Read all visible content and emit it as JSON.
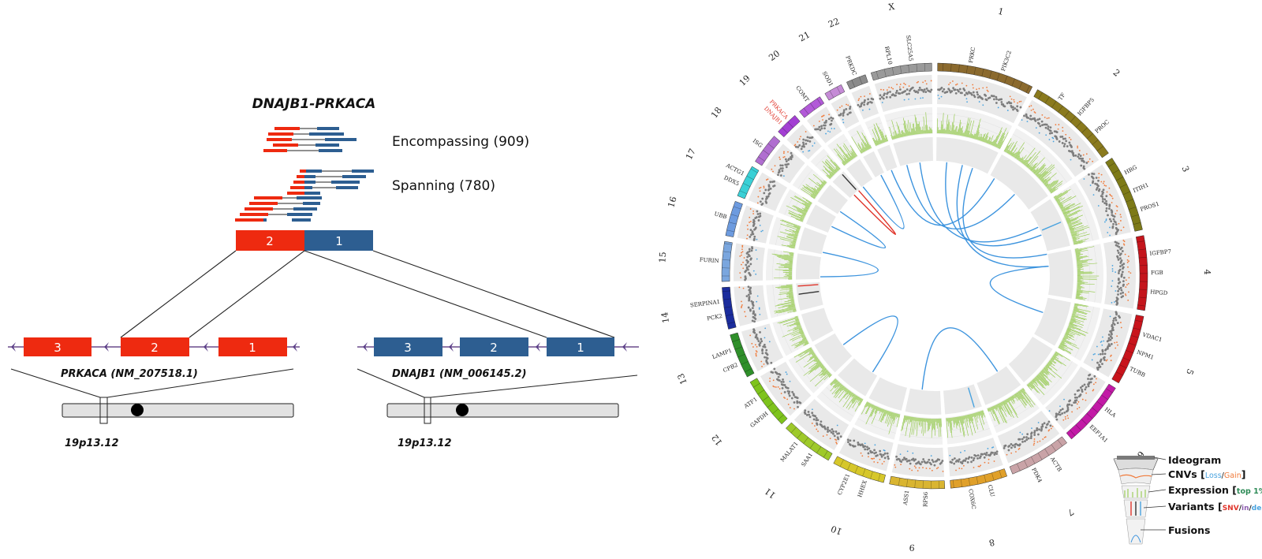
{
  "left_panel": {
    "fusion_title": "DNAJB1-PRKACA",
    "encompassing_label": "Encompassing (909)",
    "spanning_label": "Spanning (780)",
    "fusion_exons": [
      {
        "label": "2",
        "color": "#ee2a10"
      },
      {
        "label": "1",
        "color": "#2d5e91"
      }
    ],
    "prkaca": {
      "gene_label": "PRKACA (NM_207518.1)",
      "exons": [
        "3",
        "2",
        "1"
      ],
      "color": "#ee2a10",
      "band": "19p13.12"
    },
    "dnajb1": {
      "gene_label": "DNAJB1 (NM_006145.2)",
      "exons": [
        "3",
        "2",
        "1"
      ],
      "color": "#2d5e91",
      "band": "19p13.12"
    }
  },
  "circos": {
    "chromosomes": [
      "1",
      "2",
      "3",
      "4",
      "5",
      "6",
      "7",
      "8",
      "9",
      "10",
      "11",
      "12",
      "13",
      "14",
      "15",
      "16",
      "17",
      "18",
      "19",
      "20",
      "21",
      "22",
      "X"
    ],
    "gene_labels": {
      "1": [
        "PRKC",
        "PIK3C2"
      ],
      "2": [
        "TF",
        "IGFBP5",
        "PROC"
      ],
      "3": [
        "HRG",
        "ITIH1",
        "PROS1"
      ],
      "4": [
        "IGFBP7",
        "FGB",
        "HPGD"
      ],
      "5": [
        "VDAC1",
        "NPM1",
        "TUBB"
      ],
      "6": [
        "HLA",
        "EEF1A1"
      ],
      "7": [
        "ACTB",
        "PDK4"
      ],
      "8": [
        "CLU",
        "COX6C"
      ],
      "9": [
        "RPS6",
        "ASS1"
      ],
      "10": [
        "HHEX",
        "CYP2E1"
      ],
      "11": [
        "SAA1",
        "MALAT1"
      ],
      "12": [
        "GAPDH",
        "ATF1"
      ],
      "13": [
        "CPB2",
        "LAMP1"
      ],
      "14": [
        "PCK2",
        "SERPINA1"
      ],
      "15": [
        "FURIN"
      ],
      "16": [
        "UBB"
      ],
      "17": [
        "DDX5",
        "ACTG1"
      ],
      "18": [
        "ISG"
      ],
      "19": [
        "DNAJB1",
        "PRKACA"
      ],
      "20": [
        "COMT"
      ],
      "21": [
        "SOD1"
      ],
      "22": [
        "PRKDC"
      ],
      "X": [
        "RPL10",
        "SLC25A5"
      ]
    },
    "colors": {
      "cnv_loss": "#4aa3df",
      "cnv_gain": "#f07a3a",
      "expression": "#8cc63f",
      "snv": "#e0352b",
      "in": "#8e5fb0",
      "del": "#4aa3df",
      "fusion": "#3d94de",
      "track_bg": "#e9e9e9"
    }
  },
  "legend": {
    "items": [
      {
        "label": "Ideogram"
      },
      {
        "label": "CNVs [",
        "suffix": "]",
        "parts": [
          {
            "text": "Loss",
            "color": "#4aa3df"
          },
          {
            "text": "/",
            "color": "#111"
          },
          {
            "text": "Gain",
            "color": "#f07a3a"
          }
        ]
      },
      {
        "label": "Expression [",
        "suffix": "]",
        "parts": [
          {
            "text": "top 1%",
            "color": "#2e8b57"
          }
        ]
      },
      {
        "label": "Variants [",
        "suffix": "]",
        "parts": [
          {
            "text": "SNV",
            "color": "#e0352b"
          },
          {
            "text": "/",
            "color": "#111"
          },
          {
            "text": "in",
            "color": "#8e5fb0"
          },
          {
            "text": "/",
            "color": "#111"
          },
          {
            "text": "del",
            "color": "#4aa3df"
          }
        ]
      },
      {
        "label": "Fusions"
      }
    ]
  }
}
